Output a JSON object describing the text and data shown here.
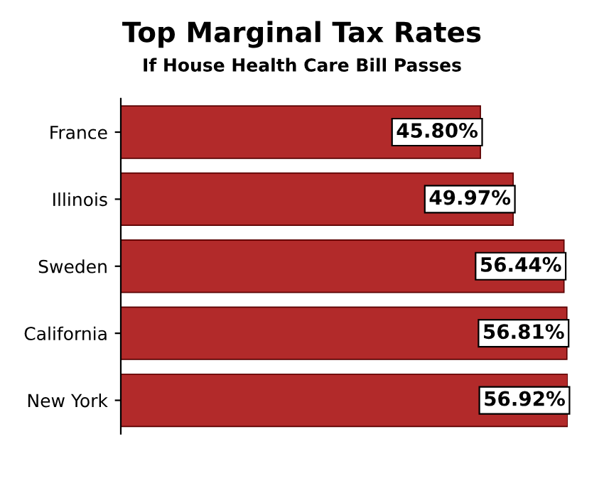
{
  "chart_data": {
    "type": "bar",
    "orientation": "horizontal",
    "title": "Top Marginal Tax Rates",
    "subtitle": "If House Health Care Bill Passes",
    "categories": [
      "France",
      "Illinois",
      "Sweden",
      "California",
      "New York"
    ],
    "values": [
      45.8,
      49.97,
      56.44,
      56.81,
      56.92
    ],
    "value_labels": [
      "45.80%",
      "49.97%",
      "56.44%",
      "56.81%",
      "56.92%"
    ],
    "color": "#b22a2a",
    "grid": false,
    "legend": false
  }
}
